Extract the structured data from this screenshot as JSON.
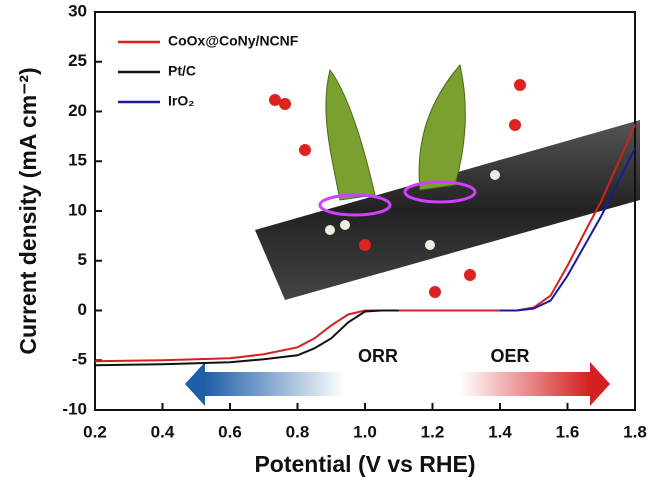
{
  "chart_data": {
    "type": "line",
    "x_label": "Potential (V vs RHE)",
    "y_label": "Current density (mA cm⁻²)",
    "xlim": [
      0.2,
      1.8
    ],
    "ylim": [
      -10,
      30
    ],
    "xticks": [
      0.2,
      0.4,
      0.6,
      0.8,
      {
        "value": 1,
        "label": "1.0"
      },
      1.2,
      1.4,
      1.6,
      1.8
    ],
    "yticks": [
      -10,
      -5,
      0,
      5,
      10,
      15,
      20,
      25,
      30
    ],
    "series": [
      {
        "name": "CoOx@CoNy/NCNF",
        "color": "#d42020",
        "x": [
          0.2,
          0.4,
          0.6,
          0.7,
          0.8,
          0.85,
          0.9,
          0.95,
          1.0,
          1.2,
          1.45,
          1.5,
          1.55,
          1.6,
          1.65,
          1.7,
          1.75,
          1.8
        ],
        "values": [
          -5.1,
          -5.0,
          -4.8,
          -4.4,
          -3.7,
          -2.8,
          -1.5,
          -0.4,
          0,
          0,
          0,
          0.3,
          1.5,
          4.5,
          7.8,
          11,
          14.8,
          18.7
        ]
      },
      {
        "name": "Pt/C",
        "color": "#111111",
        "x": [
          0.2,
          0.4,
          0.6,
          0.7,
          0.8,
          0.85,
          0.9,
          0.95,
          1.0,
          1.05,
          1.1
        ],
        "values": [
          -5.5,
          -5.4,
          -5.2,
          -4.9,
          -4.5,
          -3.8,
          -2.8,
          -1.2,
          -0.1,
          0,
          0
        ]
      },
      {
        "name": "IrO₂",
        "color": "#1a1a9a",
        "x": [
          1.4,
          1.45,
          1.5,
          1.55,
          1.6,
          1.65,
          1.7,
          1.75,
          1.8
        ],
        "values": [
          0,
          0,
          0.2,
          1.0,
          3.5,
          6.5,
          9.5,
          12.9,
          16.3
        ]
      }
    ],
    "annotations": [
      "ORR",
      "OER"
    ]
  }
}
